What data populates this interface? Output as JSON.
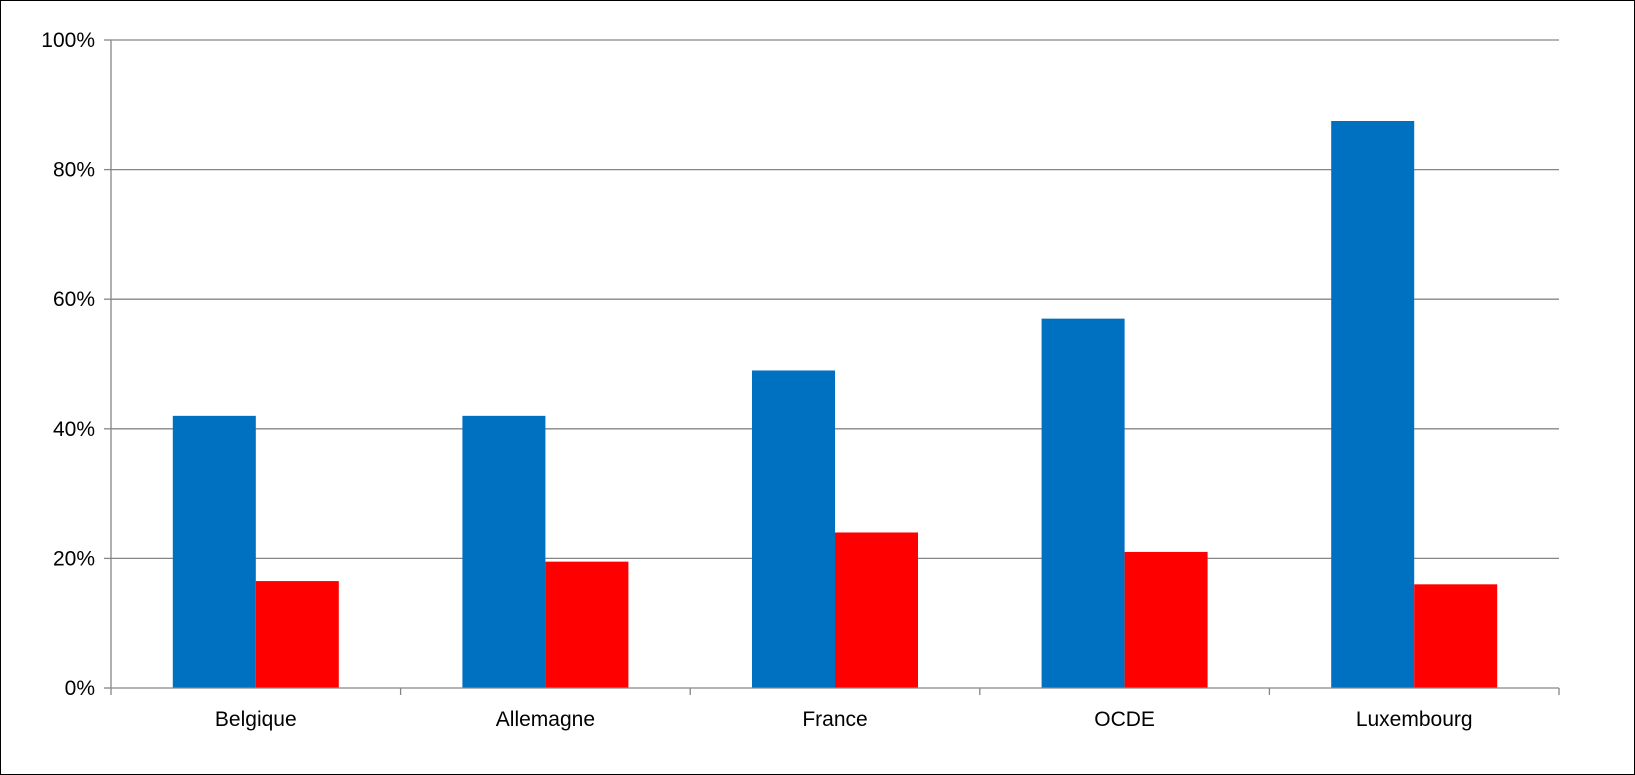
{
  "chart_data": {
    "type": "bar",
    "categories": [
      "Belgique",
      "Allemagne",
      "France",
      "OCDE",
      "Luxembourg"
    ],
    "series": [
      {
        "values": [
          42,
          42,
          49,
          57,
          87.5
        ],
        "color": "#0070c0"
      },
      {
        "values": [
          16.5,
          19.5,
          24,
          21,
          16
        ],
        "color": "#ff0000"
      }
    ],
    "ylim": [
      0,
      100
    ],
    "yticks": [
      "0%",
      "20%",
      "40%",
      "60%",
      "80%",
      "100%"
    ],
    "y_unit": "percent",
    "grid": "horizontal",
    "legend": "none"
  }
}
